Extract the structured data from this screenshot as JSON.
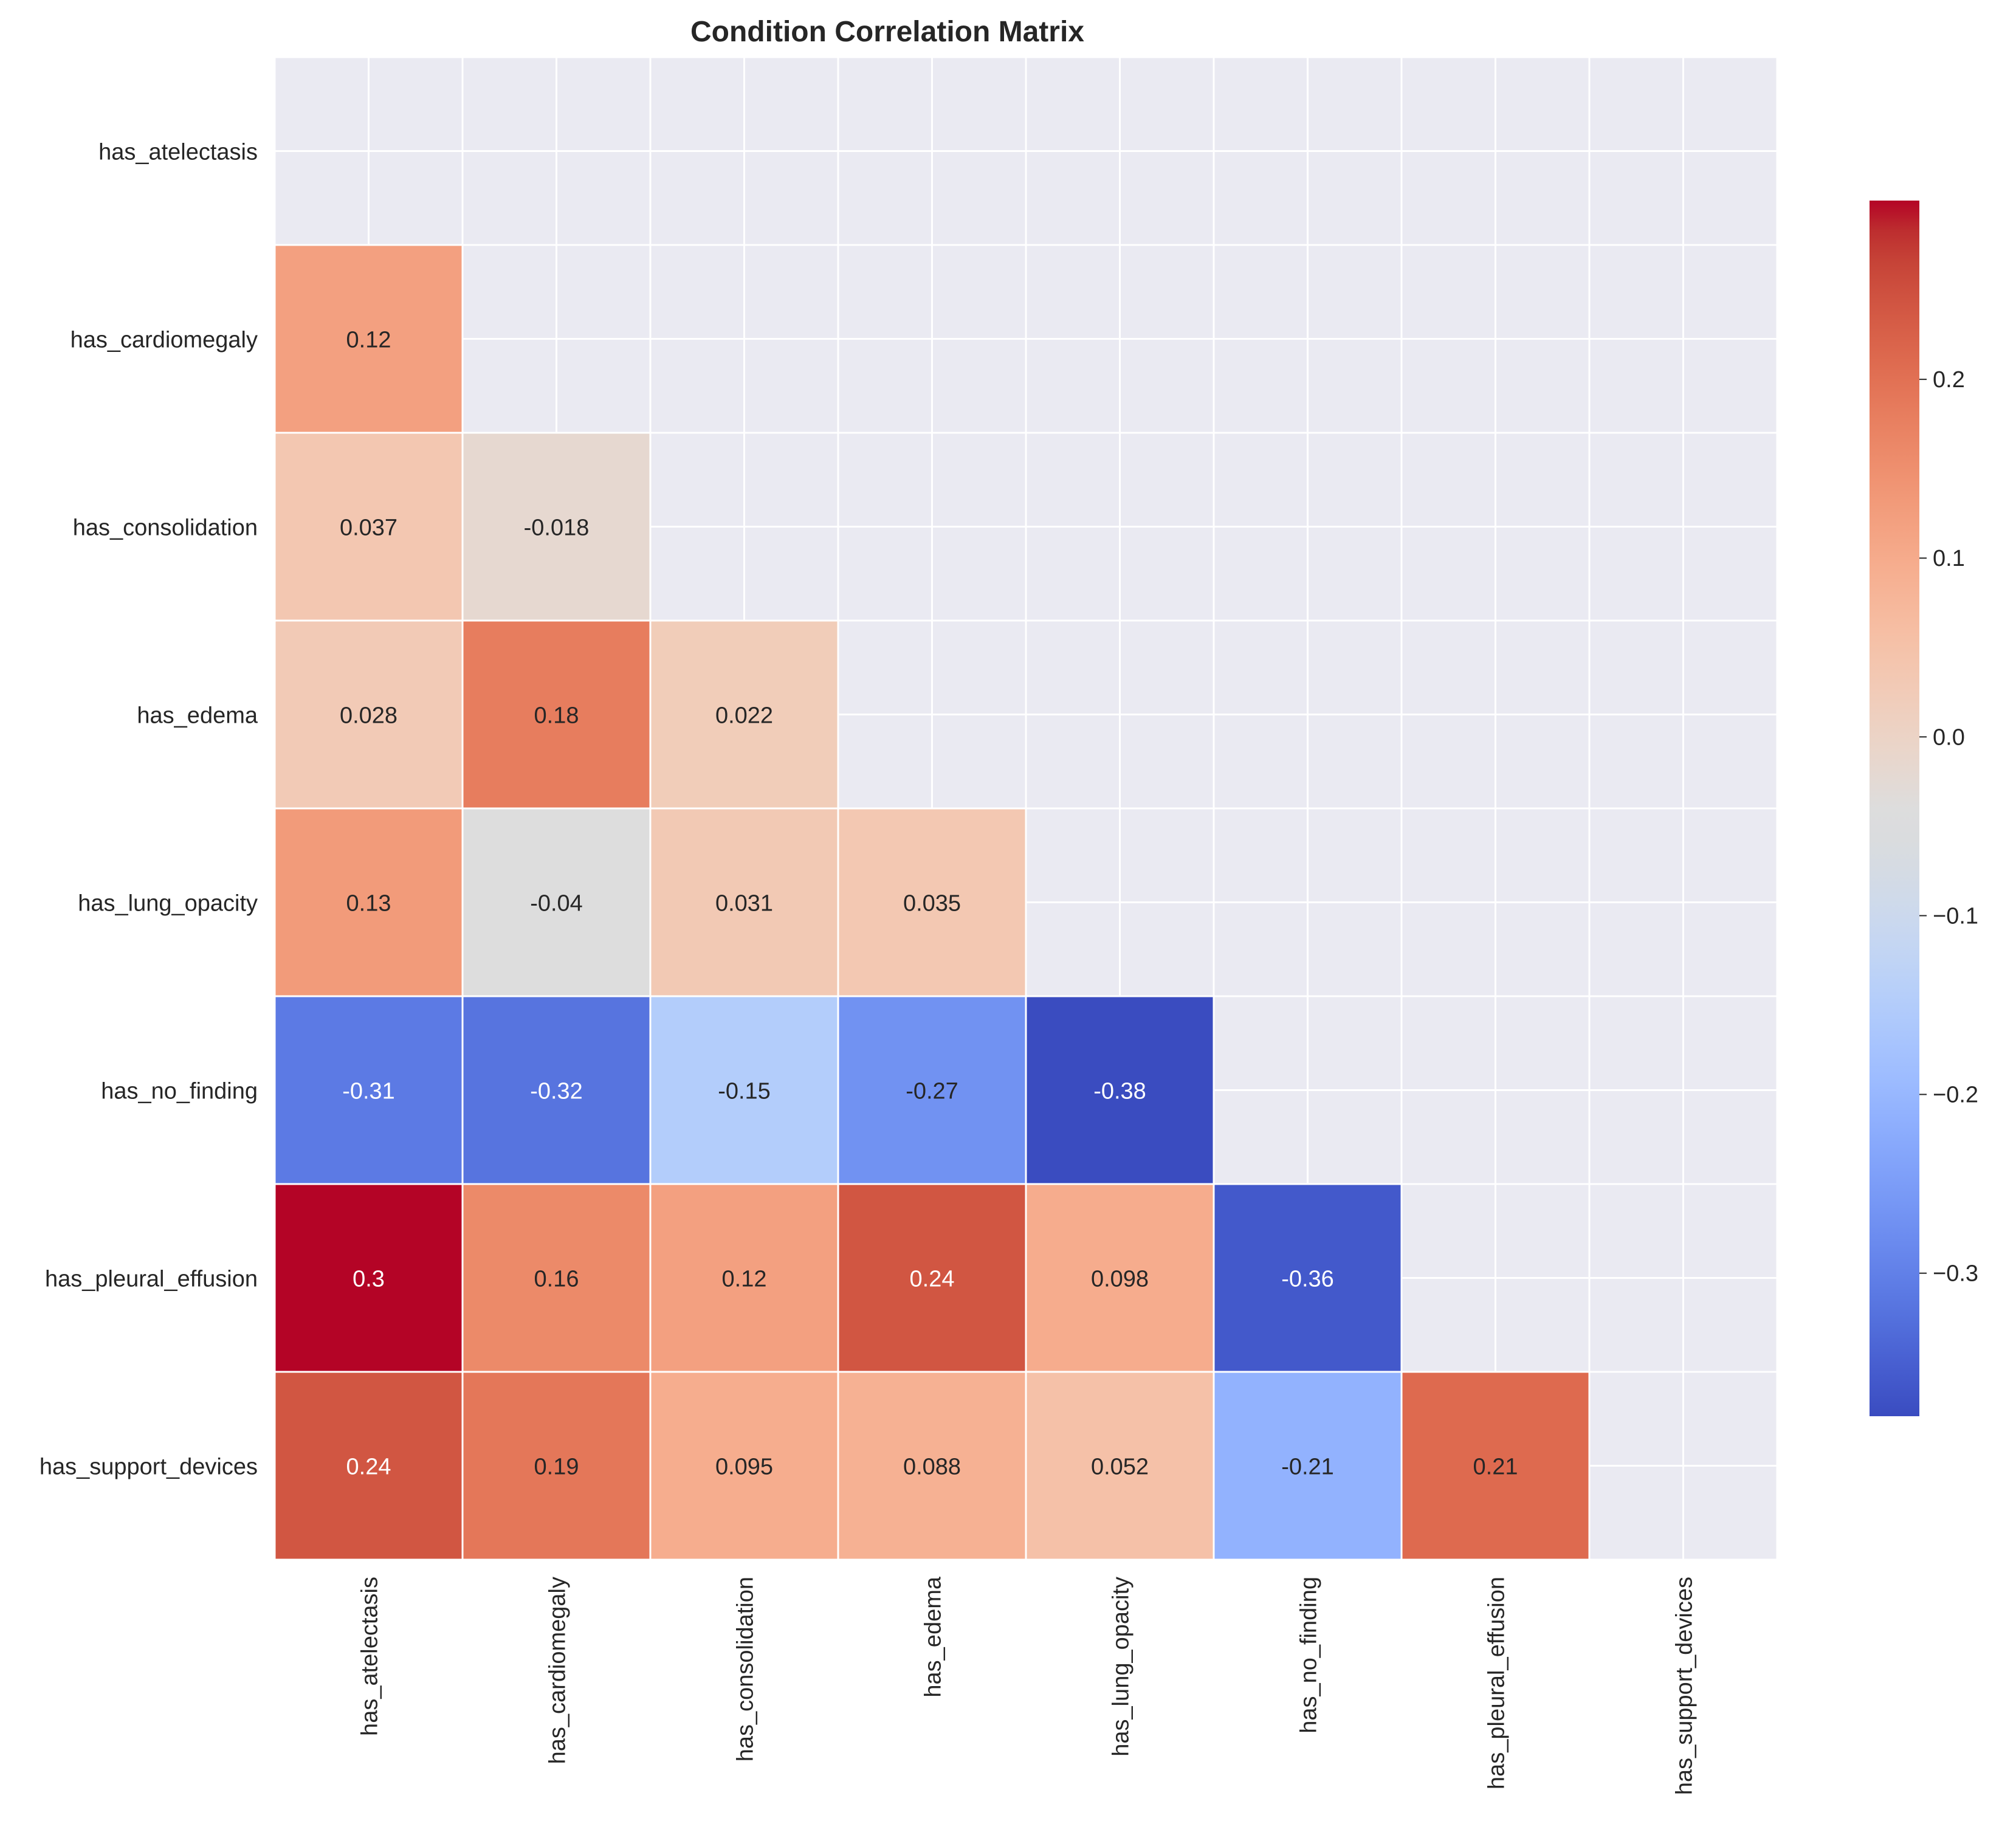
{
  "chart_data": {
    "type": "heatmap",
    "title": "Condition Correlation Matrix",
    "mask": "upper-triangle-including-diagonal",
    "row_labels": [
      "has_atelectasis",
      "has_cardiomegaly",
      "has_consolidation",
      "has_edema",
      "has_lung_opacity",
      "has_no_finding",
      "has_pleural_effusion",
      "has_support_devices"
    ],
    "col_labels": [
      "has_atelectasis",
      "has_cardiomegaly",
      "has_consolidation",
      "has_edema",
      "has_lung_opacity",
      "has_no_finding",
      "has_pleural_effusion",
      "has_support_devices"
    ],
    "cells": [
      {
        "row": 1,
        "col": 0,
        "value": 0.12,
        "label": "0.12"
      },
      {
        "row": 2,
        "col": 0,
        "value": 0.037,
        "label": "0.037"
      },
      {
        "row": 2,
        "col": 1,
        "value": -0.018,
        "label": "-0.018"
      },
      {
        "row": 3,
        "col": 0,
        "value": 0.028,
        "label": "0.028"
      },
      {
        "row": 3,
        "col": 1,
        "value": 0.18,
        "label": "0.18"
      },
      {
        "row": 3,
        "col": 2,
        "value": 0.022,
        "label": "0.022"
      },
      {
        "row": 4,
        "col": 0,
        "value": 0.13,
        "label": "0.13"
      },
      {
        "row": 4,
        "col": 1,
        "value": -0.04,
        "label": "-0.04"
      },
      {
        "row": 4,
        "col": 2,
        "value": 0.031,
        "label": "0.031"
      },
      {
        "row": 4,
        "col": 3,
        "value": 0.035,
        "label": "0.035"
      },
      {
        "row": 5,
        "col": 0,
        "value": -0.31,
        "label": "-0.31"
      },
      {
        "row": 5,
        "col": 1,
        "value": -0.32,
        "label": "-0.32"
      },
      {
        "row": 5,
        "col": 2,
        "value": -0.15,
        "label": "-0.15"
      },
      {
        "row": 5,
        "col": 3,
        "value": -0.27,
        "label": "-0.27"
      },
      {
        "row": 5,
        "col": 4,
        "value": -0.38,
        "label": "-0.38"
      },
      {
        "row": 6,
        "col": 0,
        "value": 0.3,
        "label": "0.3"
      },
      {
        "row": 6,
        "col": 1,
        "value": 0.16,
        "label": "0.16"
      },
      {
        "row": 6,
        "col": 2,
        "value": 0.12,
        "label": "0.12"
      },
      {
        "row": 6,
        "col": 3,
        "value": 0.24,
        "label": "0.24"
      },
      {
        "row": 6,
        "col": 4,
        "value": 0.098,
        "label": "0.098"
      },
      {
        "row": 6,
        "col": 5,
        "value": -0.36,
        "label": "-0.36"
      },
      {
        "row": 7,
        "col": 0,
        "value": 0.24,
        "label": "0.24"
      },
      {
        "row": 7,
        "col": 1,
        "value": 0.19,
        "label": "0.19"
      },
      {
        "row": 7,
        "col": 2,
        "value": 0.095,
        "label": "0.095"
      },
      {
        "row": 7,
        "col": 3,
        "value": 0.088,
        "label": "0.088"
      },
      {
        "row": 7,
        "col": 4,
        "value": 0.052,
        "label": "0.052"
      },
      {
        "row": 7,
        "col": 5,
        "value": -0.21,
        "label": "-0.21"
      },
      {
        "row": 7,
        "col": 6,
        "value": 0.21,
        "label": "0.21"
      }
    ],
    "colorbar": {
      "colormap": "coolwarm",
      "vmin": -0.38,
      "vmax": 0.3,
      "ticks": [
        -0.3,
        -0.2,
        -0.1,
        0.0,
        0.1,
        0.2
      ],
      "tick_labels": [
        "−0.3",
        "−0.2",
        "−0.1",
        "0.0",
        "0.1",
        "0.2"
      ]
    },
    "grid": true,
    "legend": "colorbar-right"
  }
}
